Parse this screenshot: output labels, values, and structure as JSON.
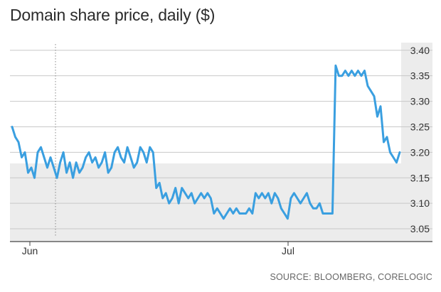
{
  "title": "Domain share price, daily ($)",
  "source": "SOURCE: BLOOMBERG, CORELOGIC",
  "colors": {
    "line": "#3a9fe0",
    "grid": "#c8c8c8",
    "fill_band": "#ececec",
    "axis": "#333333"
  },
  "chart_data": {
    "type": "line",
    "title": "Domain share price, daily ($)",
    "xlabel": "",
    "ylabel": "",
    "x_ticks": [
      "Jun",
      "Jul"
    ],
    "y_ticks": [
      3.05,
      3.1,
      3.15,
      3.2,
      3.25,
      3.3,
      3.35,
      3.4
    ],
    "y_tick_labels": [
      "3.05",
      "3.10",
      "3.15",
      "3.20",
      "3.25",
      "3.30",
      "3.35",
      "3.40"
    ],
    "ylim": [
      3.025,
      3.415
    ],
    "grid": true,
    "legend": "none",
    "series": [
      {
        "values": [
          3.25,
          3.23,
          3.22,
          3.19,
          3.2,
          3.16,
          3.17,
          3.15,
          3.2,
          3.21,
          3.19,
          3.17,
          3.19,
          3.17,
          3.15,
          3.18,
          3.2,
          3.16,
          3.18,
          3.15,
          3.18,
          3.16,
          3.17,
          3.19,
          3.2,
          3.18,
          3.19,
          3.17,
          3.18,
          3.2,
          3.16,
          3.17,
          3.2,
          3.21,
          3.19,
          3.18,
          3.21,
          3.19,
          3.17,
          3.18,
          3.21,
          3.2,
          3.18,
          3.21,
          3.2,
          3.13,
          3.14,
          3.11,
          3.12,
          3.1,
          3.11,
          3.13,
          3.1,
          3.13,
          3.12,
          3.11,
          3.12,
          3.1,
          3.11,
          3.12,
          3.11,
          3.12,
          3.11,
          3.08,
          3.09,
          3.08,
          3.07,
          3.08,
          3.09,
          3.08,
          3.09,
          3.08,
          3.08,
          3.08,
          3.09,
          3.08,
          3.12,
          3.11,
          3.12,
          3.11,
          3.12,
          3.1,
          3.12,
          3.11,
          3.09,
          3.08,
          3.07,
          3.11,
          3.12,
          3.11,
          3.1,
          3.11,
          3.12,
          3.1,
          3.09,
          3.09,
          3.1,
          3.08,
          3.08,
          3.08,
          3.08,
          3.37,
          3.35,
          3.35,
          3.36,
          3.35,
          3.36,
          3.35,
          3.36,
          3.35,
          3.36,
          3.33,
          3.32,
          3.31,
          3.27,
          3.29,
          3.22,
          3.23,
          3.2,
          3.19,
          3.18,
          3.2
        ]
      }
    ]
  }
}
